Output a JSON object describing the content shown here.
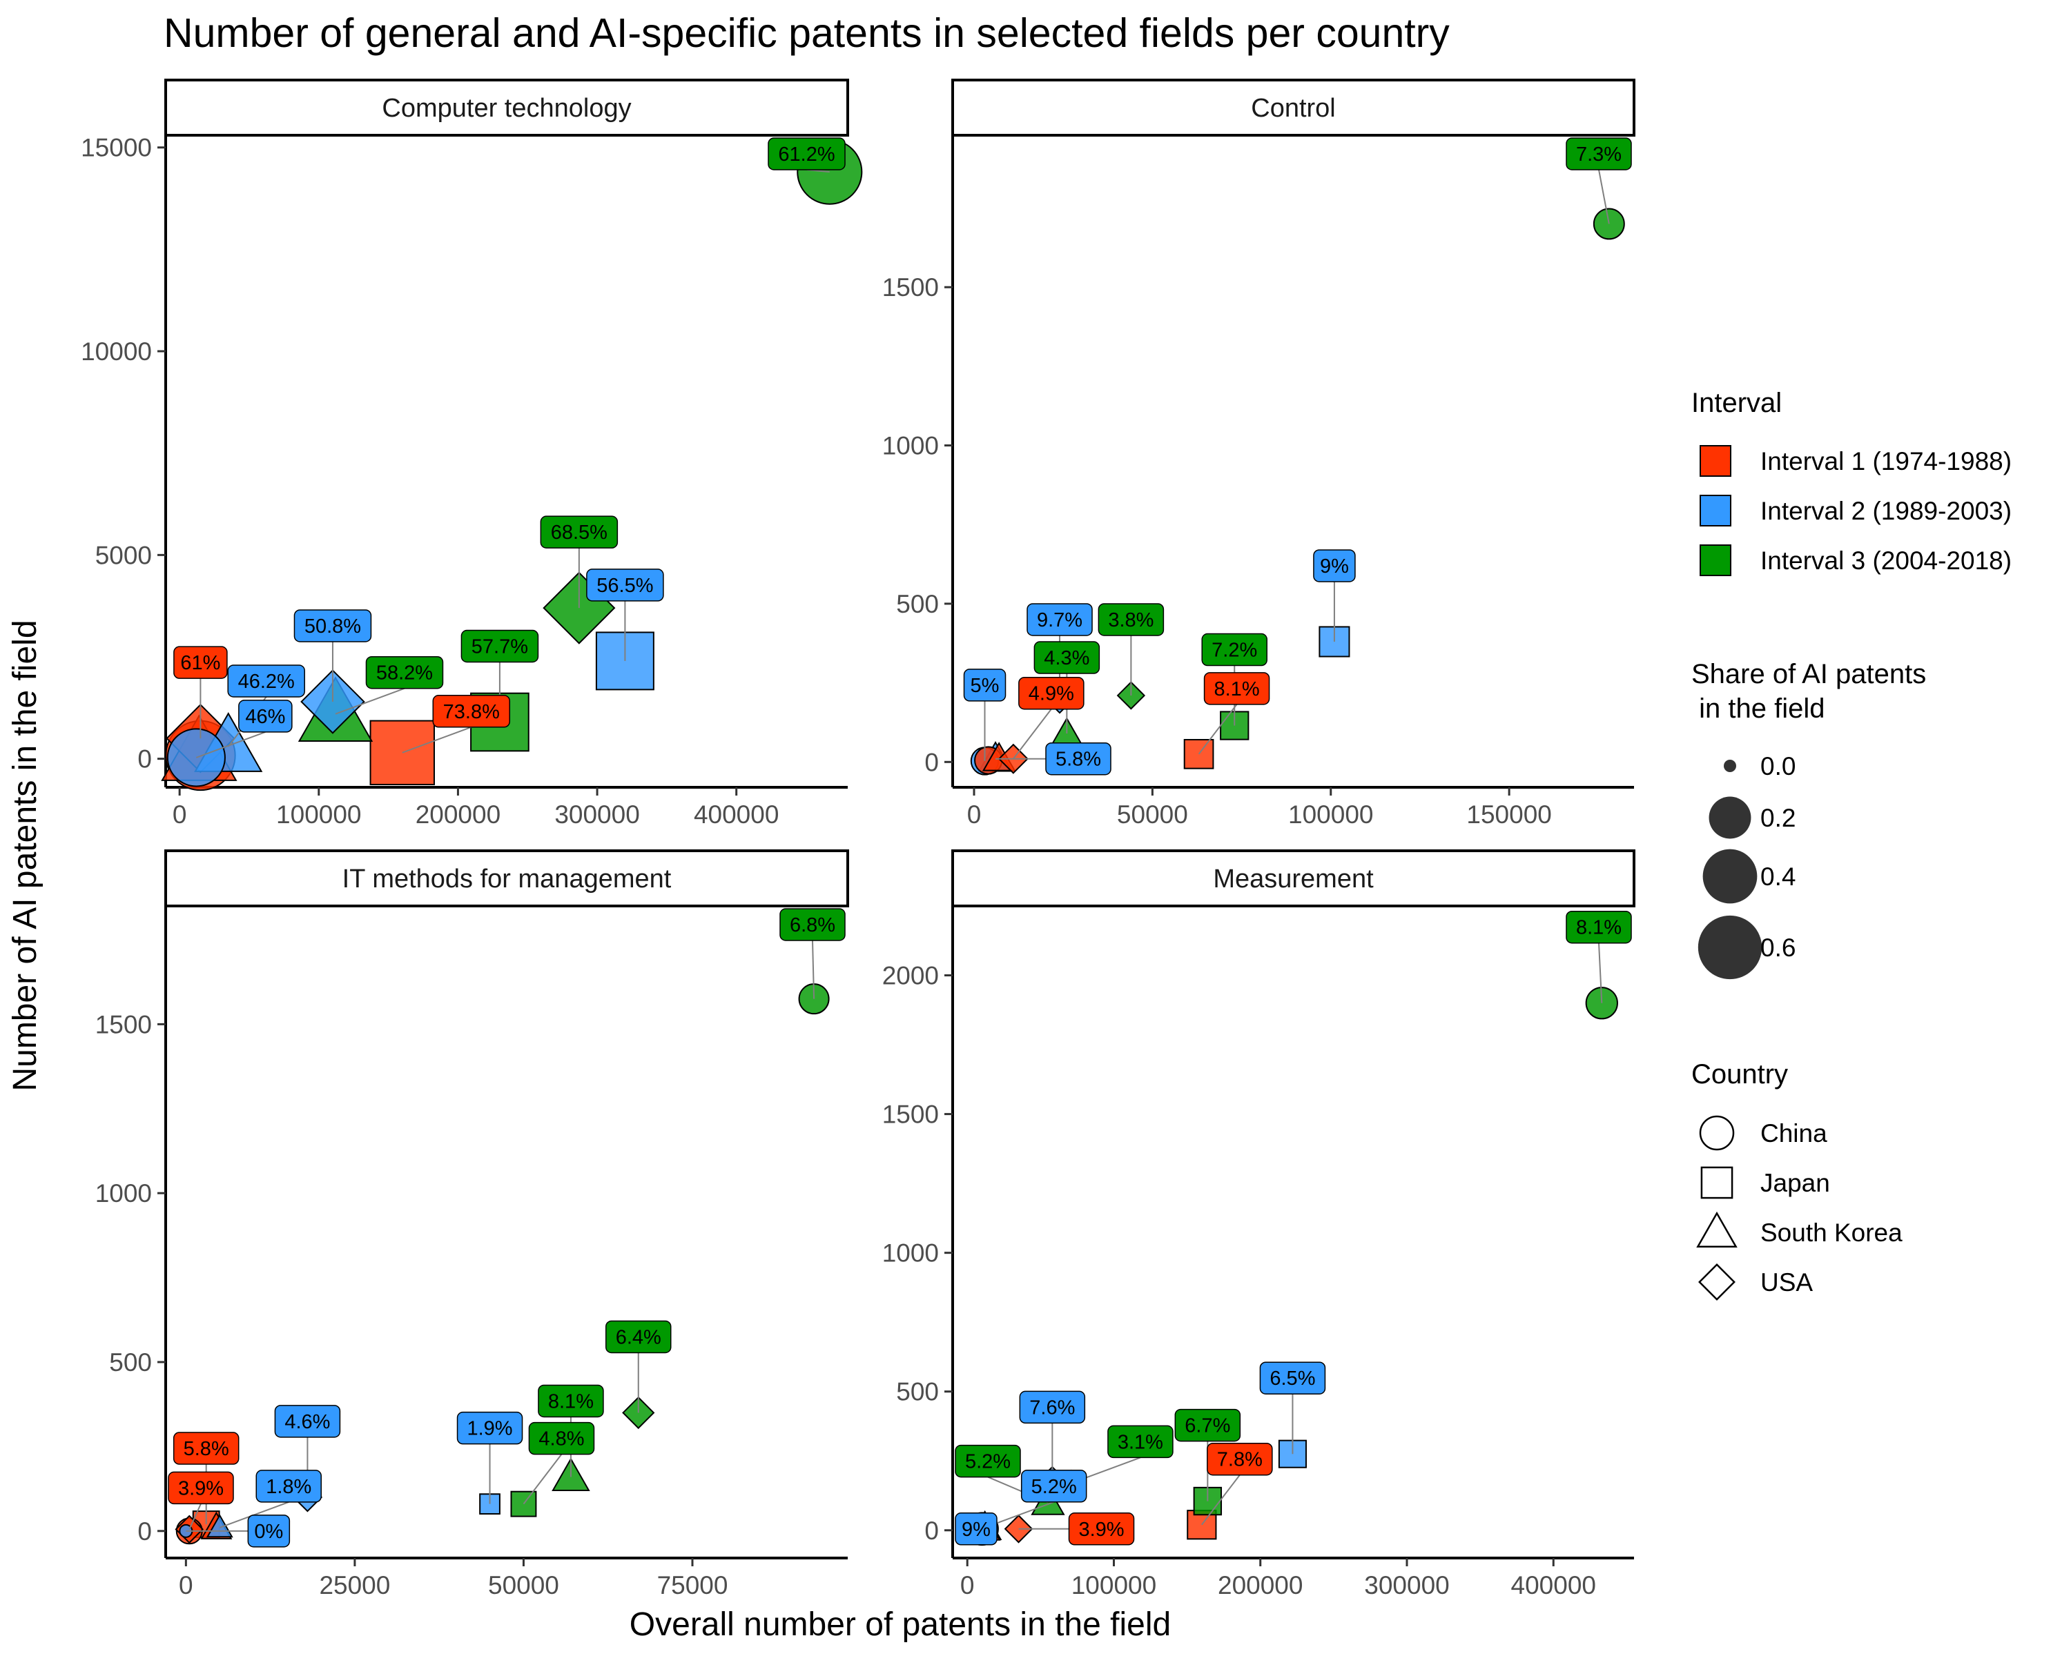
{
  "title": "Number of general and AI-specific patents in selected fields per country",
  "xlabel": "Overall number of patents in the field",
  "ylabel": "Number of AI patents in the field",
  "colors": {
    "Interval 1 (1974-1988)": "#ff3300",
    "Interval 2 (1989-2003)": "#3399ff",
    "Interval 3 (2004-2018)": "#009900"
  },
  "legend": {
    "interval_title": "Interval",
    "intervals": [
      "Interval 1 (1974-1988)",
      "Interval 2 (1989-2003)",
      "Interval 3 (2004-2018)"
    ],
    "size_title_line1": "Share of AI patents",
    "size_title_line2": " in the field",
    "size_values": [
      "0.0",
      "0.2",
      "0.4",
      "0.6"
    ],
    "country_title": "Country",
    "countries": [
      "China",
      "Japan",
      "South Korea",
      "USA"
    ],
    "country_shapes": [
      "circle",
      "square",
      "triangle",
      "diamond"
    ]
  },
  "chart_data": [
    {
      "type": "scatter",
      "panel": "Computer technology",
      "x_ticks": [
        "0",
        "100000",
        "200000",
        "300000",
        "400000"
      ],
      "y_ticks": [
        "0",
        "5000",
        "10000",
        "15000"
      ],
      "xlim": [
        -10000,
        480000
      ],
      "ylim": [
        -700,
        15300
      ],
      "points": [
        {
          "country": "China",
          "interval": 1,
          "x": 15000,
          "y": 80,
          "share": 0.738
        },
        {
          "country": "Japan",
          "interval": 1,
          "x": 160000,
          "y": 150,
          "share": 0.738,
          "label": "73.8%"
        },
        {
          "country": "South Korea",
          "interval": 1,
          "x": 14000,
          "y": 150,
          "share": 0.61
        },
        {
          "country": "USA",
          "interval": 1,
          "x": 15000,
          "y": 500,
          "share": 0.61,
          "label": "61%"
        },
        {
          "country": "China",
          "interval": 2,
          "x": 12000,
          "y": 30,
          "share": 0.46,
          "label": "46%"
        },
        {
          "country": "Japan",
          "interval": 2,
          "x": 320000,
          "y": 2400,
          "share": 0.565,
          "label": "56.5%"
        },
        {
          "country": "South Korea",
          "interval": 2,
          "x": 35000,
          "y": 300,
          "share": 0.462,
          "label": "46.2%"
        },
        {
          "country": "USA",
          "interval": 2,
          "x": 110000,
          "y": 1400,
          "share": 0.508,
          "label": "50.8%"
        },
        {
          "country": "China",
          "interval": 3,
          "x": 467000,
          "y": 14400,
          "share": 0.612,
          "label": "61.2%"
        },
        {
          "country": "Japan",
          "interval": 3,
          "x": 230000,
          "y": 900,
          "share": 0.577,
          "label": "57.7%"
        },
        {
          "country": "South Korea",
          "interval": 3,
          "x": 112000,
          "y": 1100,
          "share": 0.582,
          "label": "58.2%"
        },
        {
          "country": "USA",
          "interval": 3,
          "x": 287000,
          "y": 3700,
          "share": 0.685,
          "label": "68.5%"
        }
      ]
    },
    {
      "type": "scatter",
      "panel": "Control",
      "x_ticks": [
        "0",
        "50000",
        "100000",
        "150000"
      ],
      "y_ticks": [
        "0",
        "500",
        "1000",
        "1500"
      ],
      "xlim": [
        -6000,
        185000
      ],
      "ylim": [
        -80,
        1980
      ],
      "points": [
        {
          "country": "China",
          "interval": 1,
          "x": 4000,
          "y": 5,
          "share": 0.049
        },
        {
          "country": "Japan",
          "interval": 1,
          "x": 63000,
          "y": 25,
          "share": 0.081,
          "label": "8.1%"
        },
        {
          "country": "South Korea",
          "interval": 1,
          "x": 7000,
          "y": 10,
          "share": 0.049
        },
        {
          "country": "USA",
          "interval": 1,
          "x": 11000,
          "y": 10,
          "share": 0.049,
          "label": "4.9%"
        },
        {
          "country": "China",
          "interval": 2,
          "x": 3000,
          "y": 3,
          "share": 0.05,
          "label": "5%"
        },
        {
          "country": "Japan",
          "interval": 2,
          "x": 101000,
          "y": 380,
          "share": 0.09,
          "label": "9%"
        },
        {
          "country": "South Korea",
          "interval": 2,
          "x": 6000,
          "y": 10,
          "share": 0.058,
          "label": "5.8%"
        },
        {
          "country": "USA",
          "interval": 2,
          "x": 24000,
          "y": 210,
          "share": 0.097,
          "label": "9.7%"
        },
        {
          "country": "China",
          "interval": 3,
          "x": 178000,
          "y": 1700,
          "share": 0.073,
          "label": "7.3%"
        },
        {
          "country": "Japan",
          "interval": 3,
          "x": 73000,
          "y": 115,
          "share": 0.072,
          "label": "7.2%"
        },
        {
          "country": "South Korea",
          "interval": 3,
          "x": 26000,
          "y": 90,
          "share": 0.043,
          "label": "4.3%"
        },
        {
          "country": "USA",
          "interval": 3,
          "x": 44000,
          "y": 210,
          "share": 0.038,
          "label": "3.8%"
        }
      ]
    },
    {
      "type": "scatter",
      "panel": "IT methods for management",
      "x_ticks": [
        "0",
        "25000",
        "50000",
        "75000"
      ],
      "y_ticks": [
        "0",
        "500",
        "1000",
        "1500"
      ],
      "xlim": [
        -3000,
        98000
      ],
      "ylim": [
        -80,
        1850
      ],
      "points": [
        {
          "country": "China",
          "interval": 1,
          "x": 500,
          "y": 0,
          "share": 0.039
        },
        {
          "country": "Japan",
          "interval": 1,
          "x": 3000,
          "y": 20,
          "share": 0.058,
          "label": "5.8%"
        },
        {
          "country": "South Korea",
          "interval": 1,
          "x": 4500,
          "y": 10,
          "share": 0.039
        },
        {
          "country": "USA",
          "interval": 1,
          "x": 500,
          "y": 5,
          "share": 0.039,
          "label": "3.9%"
        },
        {
          "country": "China",
          "interval": 2,
          "x": 0,
          "y": 0,
          "share": 0.0,
          "label": "0%"
        },
        {
          "country": "Japan",
          "interval": 2,
          "x": 45000,
          "y": 80,
          "share": 0.019,
          "label": "1.9%"
        },
        {
          "country": "South Korea",
          "interval": 2,
          "x": 5000,
          "y": 10,
          "share": 0.018,
          "label": "1.8%"
        },
        {
          "country": "USA",
          "interval": 2,
          "x": 18000,
          "y": 100,
          "share": 0.046,
          "label": "4.6%"
        },
        {
          "country": "China",
          "interval": 3,
          "x": 93000,
          "y": 1575,
          "share": 0.068,
          "label": "6.8%"
        },
        {
          "country": "Japan",
          "interval": 3,
          "x": 50000,
          "y": 80,
          "share": 0.048,
          "label": "4.8%"
        },
        {
          "country": "South Korea",
          "interval": 3,
          "x": 57000,
          "y": 160,
          "share": 0.081,
          "label": "8.1%"
        },
        {
          "country": "USA",
          "interval": 3,
          "x": 67000,
          "y": 350,
          "share": 0.064,
          "label": "6.4%"
        }
      ]
    },
    {
      "type": "scatter",
      "panel": "Measurement",
      "x_ticks": [
        "0",
        "100000",
        "200000",
        "300000",
        "400000"
      ],
      "y_ticks": [
        "0",
        "500",
        "1000",
        "1500",
        "2000"
      ],
      "xlim": [
        -10000,
        455000
      ],
      "ylim": [
        -100,
        2250
      ],
      "points": [
        {
          "country": "China",
          "interval": 1,
          "x": 10000,
          "y": 5,
          "share": 0.039
        },
        {
          "country": "Japan",
          "interval": 1,
          "x": 160000,
          "y": 20,
          "share": 0.078,
          "label": "7.8%"
        },
        {
          "country": "South Korea",
          "interval": 1,
          "x": 12000,
          "y": 5,
          "share": 0.039
        },
        {
          "country": "USA",
          "interval": 1,
          "x": 35000,
          "y": 5,
          "share": 0.039,
          "label": "3.9%"
        },
        {
          "country": "China",
          "interval": 2,
          "x": 10000,
          "y": 5,
          "share": 0.09,
          "label": "9%"
        },
        {
          "country": "Japan",
          "interval": 2,
          "x": 222000,
          "y": 275,
          "share": 0.065,
          "label": "6.5%"
        },
        {
          "country": "South Korea",
          "interval": 2,
          "x": 12000,
          "y": 10,
          "share": 0.052,
          "label": "5.2%"
        },
        {
          "country": "USA",
          "interval": 2,
          "x": 58000,
          "y": 170,
          "share": 0.076,
          "label": "7.6%"
        },
        {
          "country": "China",
          "interval": 3,
          "x": 433000,
          "y": 1900,
          "share": 0.081,
          "label": "8.1%"
        },
        {
          "country": "Japan",
          "interval": 3,
          "x": 164000,
          "y": 105,
          "share": 0.067,
          "label": "6.7%"
        },
        {
          "country": "South Korea",
          "interval": 3,
          "x": 55000,
          "y": 100,
          "share": 0.052,
          "label": "5.2%"
        },
        {
          "country": "USA",
          "interval": 3,
          "x": 71000,
          "y": 170,
          "share": 0.031,
          "label": "3.1%"
        }
      ]
    }
  ]
}
